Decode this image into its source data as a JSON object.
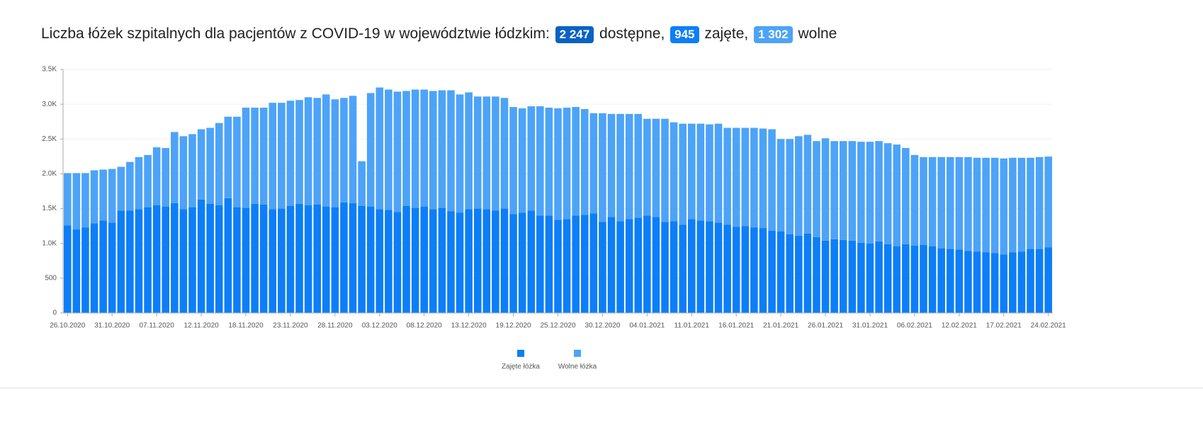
{
  "chart_data": {
    "type": "stacked-bar",
    "title": {
      "lead": "Liczba łóżek szpitalnych dla pacjentów z COVID-19 w województwie łódzkim:",
      "stats": [
        {
          "value_label": "2 247",
          "label": "dostępne,",
          "color": "#0b62c4"
        },
        {
          "value_label": "945",
          "label": "zajęte,",
          "color": "#0d7ef8"
        },
        {
          "value_label": "1 302",
          "label": "wolne",
          "color": "#4da3f8"
        }
      ]
    },
    "categories": [
      "26.10.2020",
      null,
      null,
      null,
      null,
      "31.10.2020",
      null,
      null,
      null,
      null,
      "07.11.2020",
      null,
      null,
      null,
      null,
      "12.11.2020",
      null,
      null,
      null,
      null,
      "18.11.2020",
      null,
      null,
      null,
      null,
      "23.11.2020",
      null,
      null,
      null,
      null,
      "28.11.2020",
      null,
      null,
      null,
      null,
      "03.12.2020",
      null,
      null,
      null,
      null,
      "08.12.2020",
      null,
      null,
      null,
      null,
      "13.12.2020",
      null,
      null,
      null,
      null,
      "19.12.2020",
      null,
      null,
      null,
      null,
      "25.12.2020",
      null,
      null,
      null,
      null,
      "30.12.2020",
      null,
      null,
      null,
      null,
      "04.01.2021",
      null,
      null,
      null,
      null,
      "11.01.2021",
      null,
      null,
      null,
      null,
      "16.01.2021",
      null,
      null,
      null,
      null,
      "21.01.2021",
      null,
      null,
      null,
      null,
      "26.01.2021",
      null,
      null,
      null,
      null,
      "31.01.2021",
      null,
      null,
      null,
      null,
      "06.02.2021",
      null,
      null,
      null,
      null,
      "12.02.2021",
      null,
      null,
      null,
      null,
      "17.02.2021",
      null,
      null,
      null,
      null,
      "24.02.2021"
    ],
    "series": [
      {
        "name": "Zajęte łóżka",
        "color": "#0d7ef8",
        "values": [
          1260,
          1200,
          1230,
          1290,
          1330,
          1300,
          1470,
          1470,
          1490,
          1520,
          1550,
          1530,
          1580,
          1490,
          1520,
          1630,
          1570,
          1550,
          1650,
          1520,
          1510,
          1570,
          1560,
          1490,
          1500,
          1540,
          1570,
          1550,
          1560,
          1530,
          1520,
          1590,
          1580,
          1540,
          1530,
          1490,
          1480,
          1450,
          1540,
          1510,
          1530,
          1490,
          1510,
          1460,
          1440,
          1490,
          1500,
          1490,
          1470,
          1500,
          1420,
          1440,
          1470,
          1400,
          1400,
          1340,
          1350,
          1400,
          1410,
          1430,
          1310,
          1380,
          1320,
          1350,
          1370,
          1400,
          1380,
          1310,
          1320,
          1270,
          1350,
          1330,
          1320,
          1300,
          1270,
          1240,
          1250,
          1230,
          1220,
          1180,
          1170,
          1130,
          1110,
          1140,
          1090,
          1040,
          1060,
          1050,
          1040,
          1010,
          1000,
          1030,
          990,
          960,
          990,
          970,
          980,
          960,
          930,
          920,
          910,
          890,
          880,
          870,
          860,
          840,
          870,
          880,
          920,
          920,
          945
        ]
      },
      {
        "name": "Wolne łóżka",
        "color": "#4da3f8",
        "values": [
          750,
          810,
          780,
          760,
          730,
          770,
          630,
          700,
          750,
          750,
          830,
          840,
          1020,
          1050,
          1050,
          1010,
          1090,
          1180,
          1170,
          1300,
          1440,
          1380,
          1390,
          1530,
          1520,
          1510,
          1490,
          1550,
          1530,
          1610,
          1550,
          1500,
          1540,
          640,
          1630,
          1750,
          1730,
          1730,
          1650,
          1700,
          1680,
          1700,
          1690,
          1740,
          1700,
          1680,
          1610,
          1620,
          1640,
          1590,
          1540,
          1500,
          1500,
          1570,
          1550,
          1600,
          1600,
          1560,
          1520,
          1440,
          1560,
          1480,
          1540,
          1510,
          1490,
          1390,
          1410,
          1480,
          1420,
          1450,
          1370,
          1390,
          1390,
          1420,
          1390,
          1420,
          1410,
          1430,
          1430,
          1460,
          1330,
          1370,
          1430,
          1420,
          1380,
          1470,
          1410,
          1420,
          1430,
          1450,
          1460,
          1440,
          1450,
          1460,
          1380,
          1300,
          1260,
          1280,
          1310,
          1320,
          1330,
          1350,
          1350,
          1360,
          1370,
          1380,
          1360,
          1350,
          1310,
          1320,
          1302
        ]
      }
    ],
    "ylim": [
      0,
      3500
    ],
    "yticks": [
      0,
      500,
      {
        "value": 1000,
        "label": "1.0K"
      },
      {
        "value": 1500,
        "label": "1.5K"
      },
      {
        "value": 2000,
        "label": "2.0K"
      },
      {
        "value": 2500,
        "label": "2.5K"
      },
      {
        "value": 3000,
        "label": "3.0K"
      },
      {
        "value": 3500,
        "label": "3.5K"
      }
    ],
    "grid": true,
    "legend": "bottom"
  }
}
